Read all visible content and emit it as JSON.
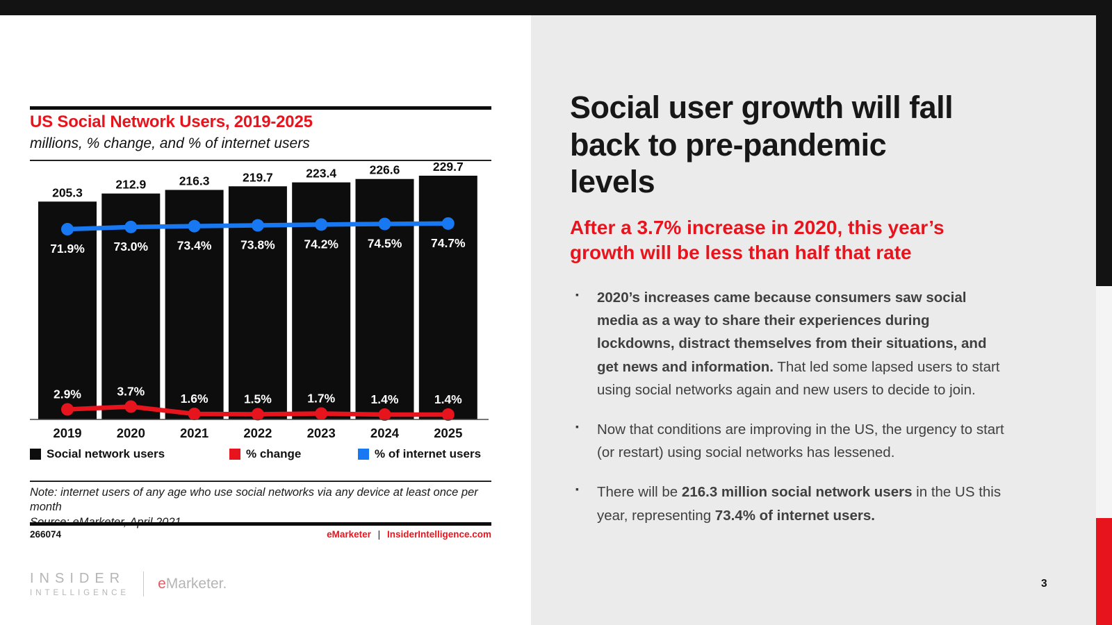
{
  "colors": {
    "accent_red": "#e8141d",
    "accent_blue": "#1778f2",
    "bar_black": "#0d0d0d",
    "right_panel_bg": "#ebebeb",
    "top_bar": "#131313"
  },
  "chart": {
    "title": "US Social Network Users, 2019-2025",
    "subtitle": "millions, % change, and % of internet users",
    "note": "Note: internet users of any age who use social networks via any device at least once per month",
    "source": "Source: eMarketer, April 2021",
    "chart_id": "266074",
    "footer_brand": "eMarketer",
    "footer_pipe": "|",
    "footer_domain": "InsiderIntelligence.com"
  },
  "chart_data": {
    "type": "bar",
    "categories": [
      "2019",
      "2020",
      "2021",
      "2022",
      "2023",
      "2024",
      "2025"
    ],
    "series": [
      {
        "name": "Social network users",
        "type": "bar",
        "unit": "millions",
        "color": "#0d0d0d",
        "values": [
          205.3,
          212.9,
          216.3,
          219.7,
          223.4,
          226.6,
          229.7
        ],
        "labels": [
          "205.3",
          "212.9",
          "216.3",
          "219.7",
          "223.4",
          "226.6",
          "229.7"
        ]
      },
      {
        "name": "% change",
        "type": "line",
        "color": "#e8141d",
        "values": [
          2.9,
          3.7,
          1.6,
          1.5,
          1.7,
          1.4,
          1.4
        ],
        "labels": [
          "2.9%",
          "3.7%",
          "1.6%",
          "1.5%",
          "1.7%",
          "1.4%",
          "1.4%"
        ]
      },
      {
        "name": "% of internet users",
        "type": "line",
        "color": "#1778f2",
        "values": [
          71.9,
          73.0,
          73.4,
          73.8,
          74.2,
          74.5,
          74.7
        ],
        "labels": [
          "71.9%",
          "73.0%",
          "73.4%",
          "73.8%",
          "74.2%",
          "74.5%",
          "74.7%"
        ]
      }
    ],
    "title": "US Social Network Users, 2019-2025",
    "xlabel": "",
    "ylabel": "",
    "legend_position": "bottom",
    "grid": false
  },
  "right": {
    "title": "Social user growth will fall\nback to pre-pandemic\nlevels",
    "subtitle": "After a 3.7% increase in 2020, this year’s\ngrowth will be less than half that rate",
    "bullet_glyph": "▪",
    "bullets": [
      [
        {
          "t": "2020’s increases came because consumers saw social media as a way to share their experiences during lockdowns, distract themselves from their situations, and get news and information.",
          "b": true
        },
        {
          "t": " That led some lapsed users to start using social networks again and new users to decide to join.",
          "b": false
        }
      ],
      [
        {
          "t": "Now that conditions are improving in the US, the urgency to start (or restart) using social networks has lessened.",
          "b": false
        }
      ],
      [
        {
          "t": "There will be ",
          "b": false
        },
        {
          "t": "216.3 million social network users",
          "b": true
        },
        {
          "t": " in the US this year, representing ",
          "b": false
        },
        {
          "t": "73.4% of internet users.",
          "b": true
        }
      ]
    ]
  },
  "footer": {
    "insider_line1": "INSIDER",
    "insider_line2": "INTELLIGENCE",
    "emarketer_e": "e",
    "emarketer_rest": "Marketer."
  },
  "slide": {
    "page_number": "3"
  }
}
